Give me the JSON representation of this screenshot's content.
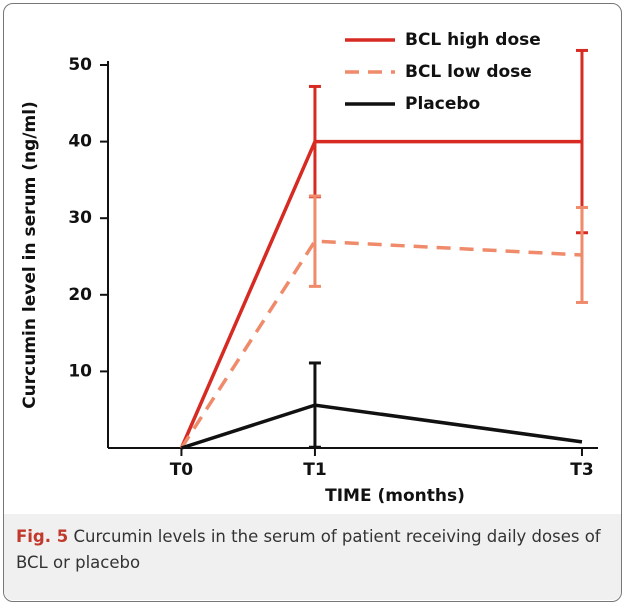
{
  "chart_data": {
    "type": "line",
    "y_label": "Curcumin level in serum (ng/ml)",
    "x_label": "TIME (months)",
    "x": [
      0,
      1,
      3
    ],
    "xlim": [
      -0.55,
      3.12
    ],
    "xticks": [
      {
        "value": 0,
        "label": "T0"
      },
      {
        "value": 1,
        "label": "T1"
      },
      {
        "value": 3,
        "label": "T3"
      }
    ],
    "ylim": [
      0,
      50
    ],
    "yticks": [
      10,
      20,
      30,
      40,
      50
    ],
    "series": [
      {
        "name": "BCL high dose",
        "color": "#d62a22",
        "style": "solid",
        "values": [
          0,
          40,
          40
        ],
        "errors": [
          null,
          7.2,
          11.9
        ]
      },
      {
        "name": "BCL low dose",
        "color": "#ef8a6a",
        "style": "dashed",
        "values": [
          0,
          27,
          25.2
        ],
        "errors": [
          null,
          5.9,
          6.2
        ]
      },
      {
        "name": "Placebo",
        "color": "#111111",
        "style": "solid",
        "values": [
          0,
          5.6,
          0.8
        ],
        "errors": [
          null,
          5.5,
          null
        ]
      }
    ]
  },
  "caption": {
    "label": "Fig. 5",
    "text": "Curcumin levels in the serum of patient receiving daily doses of BCL or placebo"
  }
}
